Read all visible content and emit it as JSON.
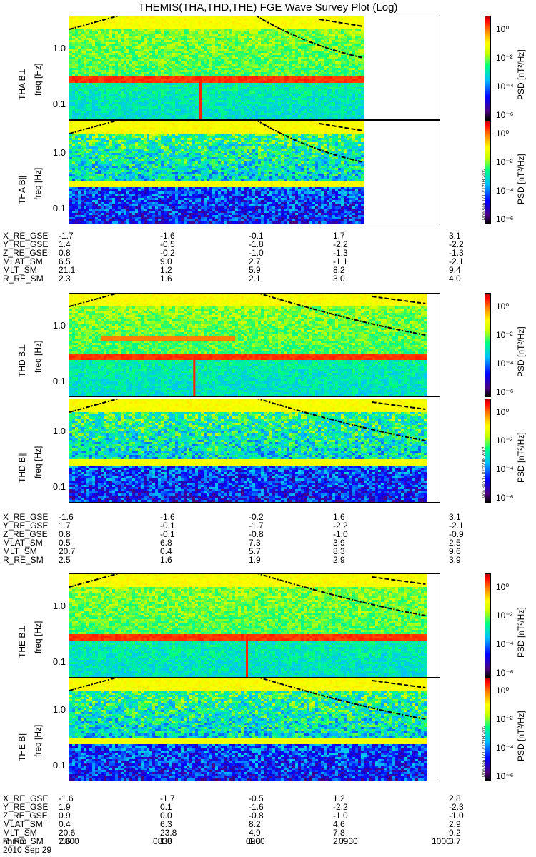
{
  "title": "THEMIS(THA,THD,THE) FGE Wave Survey Plot (Log)",
  "freq_label": "freq [Hz]",
  "freq_ticks": [
    "1.0",
    "0.1"
  ],
  "psd_label": "PSD [nT²/Hz]",
  "psd_ticks": [
    "10⁰",
    "10⁻²",
    "10⁻⁴",
    "10⁻⁶"
  ],
  "stamp": "Mon Sep 17 07:12:08 2012",
  "date": "2010 Sep 29",
  "time_ticks": [
    "0800",
    "0830",
    "0900",
    "0930",
    "1000"
  ],
  "time_label": "hhmm",
  "panels": [
    {
      "name": "THA B⊥"
    },
    {
      "name": "THA B∥"
    },
    {
      "name": "THD B⊥"
    },
    {
      "name": "THD B∥"
    },
    {
      "name": "THE B⊥"
    },
    {
      "name": "THE B∥"
    }
  ],
  "ephemeris": [
    {
      "probe": "THA",
      "rows": [
        {
          "label": "X_RE_GSE",
          "values": [
            "-1.7",
            "-1.6",
            "-0.1",
            "1.7",
            "3.1"
          ]
        },
        {
          "label": "Y_RE_GSE",
          "values": [
            "1.4",
            "-0.5",
            "-1.8",
            "-2.2",
            "-2.2"
          ]
        },
        {
          "label": "Z_RE_GSE",
          "values": [
            "0.8",
            "-0.2",
            "-1.0",
            "-1.3",
            "-1.3"
          ]
        },
        {
          "label": "MLAT_SM",
          "values": [
            "6.5",
            "9.0",
            "2.7",
            "-1.1",
            "-2.1"
          ]
        },
        {
          "label": "MLT_SM",
          "values": [
            "21.1",
            "1.2",
            "5.9",
            "8.2",
            "9.4"
          ]
        },
        {
          "label": "R_RE_SM",
          "values": [
            "2.3",
            "1.6",
            "2.1",
            "3.0",
            "4.0"
          ]
        }
      ]
    },
    {
      "probe": "THD",
      "rows": [
        {
          "label": "X_RE_GSE",
          "values": [
            "-1.6",
            "-1.6",
            "-0.2",
            "1.6",
            "3.1"
          ]
        },
        {
          "label": "Y_RE_GSE",
          "values": [
            "1.7",
            "-0.1",
            "-1.7",
            "-2.2",
            "-2.1"
          ]
        },
        {
          "label": "Z_RE_GSE",
          "values": [
            "0.8",
            "-0.1",
            "-0.8",
            "-1.0",
            "-0.9"
          ]
        },
        {
          "label": "MLAT_SM",
          "values": [
            "0.5",
            "6.8",
            "7.3",
            "3.9",
            "2.5"
          ]
        },
        {
          "label": "MLT_SM",
          "values": [
            "20.7",
            "0.4",
            "5.7",
            "8.3",
            "9.6"
          ]
        },
        {
          "label": "R_RE_SM",
          "values": [
            "2.5",
            "1.6",
            "1.9",
            "2.9",
            "3.9"
          ]
        }
      ]
    },
    {
      "probe": "THE",
      "rows": [
        {
          "label": "X_RE_GSE",
          "values": [
            "-1.6",
            "-1.7",
            "-0.5",
            "1.2",
            "2.8"
          ]
        },
        {
          "label": "Y_RE_GSE",
          "values": [
            "1.9",
            "0.1",
            "-1.6",
            "-2.2",
            "-2.3"
          ]
        },
        {
          "label": "Z_RE_GSE",
          "values": [
            "0.9",
            "0.0",
            "-0.8",
            "-1.0",
            "-1.0"
          ]
        },
        {
          "label": "MLAT_SM",
          "values": [
            "0.4",
            "6.3",
            "8.2",
            "4.6",
            "2.9"
          ]
        },
        {
          "label": "MLT_SM",
          "values": [
            "20.6",
            "23.8",
            "4.9",
            "7.8",
            "9.2"
          ]
        },
        {
          "label": "R_RE_SM",
          "values": [
            "2.6",
            "1.8",
            "1.8",
            "2.7",
            "3.7"
          ]
        }
      ]
    }
  ],
  "chart_data": {
    "type": "heatmap",
    "x_range_hhmm": [
      "0800",
      "1000"
    ],
    "y_scale": "log",
    "y_ticks": [
      1.0,
      0.1
    ],
    "colorbar_scale": "log",
    "colorbar_ticks": [
      1,
      0.01,
      0.0001,
      1e-06
    ],
    "data_end_hhmm": {
      "THA": "0935",
      "THD": "0955",
      "THE": "0955"
    },
    "features": {
      "THA": {
        "perp_band_hz": 0.3,
        "spike_hhmm": "0842"
      },
      "THD": {
        "perp_band_hz": 0.3,
        "spike_hhmm": "0840",
        "second_band_hz": 0.63
      },
      "THE": {
        "perp_band_hz": 0.3,
        "spike_hhmm": "0857"
      }
    }
  }
}
